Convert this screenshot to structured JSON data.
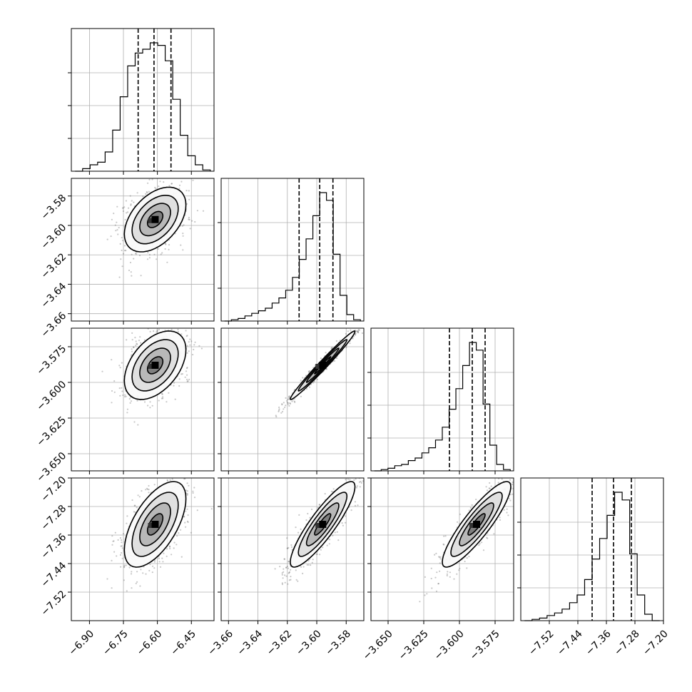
{
  "chart_data": {
    "type": "corner",
    "grid": true,
    "parameters": [
      {
        "range": [
          -6.98,
          -6.35
        ],
        "mean": -6.61,
        "sd": 0.068,
        "q": [
          -6.685,
          -6.615,
          -6.54
        ],
        "ticks": [
          {
            "value": -6.9,
            "label": "−6.90"
          },
          {
            "value": -6.75,
            "label": "−6.75"
          },
          {
            "value": -6.6,
            "label": "−6.60"
          },
          {
            "value": -6.45,
            "label": "−6.45"
          }
        ],
        "hist": [
          0,
          2,
          5,
          7,
          15,
          32,
          58,
          82,
          92,
          95,
          100,
          98,
          86,
          56,
          28,
          12,
          5,
          1
        ]
      },
      {
        "range": [
          -3.665,
          -3.568
        ],
        "mean": -3.596,
        "sd": 0.011,
        "q": [
          -3.612,
          -3.598,
          -3.589
        ],
        "ticks": [
          {
            "value": -3.66,
            "label": "−3.66"
          },
          {
            "value": -3.64,
            "label": "−3.64"
          },
          {
            "value": -3.62,
            "label": "−3.62"
          },
          {
            "value": -3.6,
            "label": "−3.60"
          },
          {
            "value": -3.58,
            "label": "−3.58"
          }
        ],
        "hist": [
          0,
          1,
          2,
          4,
          6,
          8,
          10,
          14,
          18,
          24,
          34,
          48,
          64,
          82,
          100,
          94,
          52,
          20,
          5,
          1
        ]
      },
      {
        "range": [
          -3.662,
          -3.562
        ],
        "mean": -3.588,
        "sd": 0.012,
        "q": [
          -3.607,
          -3.591,
          -3.582
        ],
        "ticks": [
          {
            "value": -3.65,
            "label": "−3.650"
          },
          {
            "value": -3.625,
            "label": "−3.625"
          },
          {
            "value": -3.6,
            "label": "−3.600"
          },
          {
            "value": -3.575,
            "label": "−3.575"
          }
        ],
        "hist": [
          0,
          1,
          2,
          4,
          5,
          8,
          10,
          14,
          18,
          24,
          34,
          48,
          64,
          82,
          100,
          94,
          52,
          20,
          5,
          1
        ]
      },
      {
        "range": [
          -7.6,
          -7.2
        ],
        "mean": -7.33,
        "sd": 0.06,
        "q": [
          -7.4,
          -7.34,
          -7.29
        ],
        "ticks": [
          {
            "value": -7.52,
            "label": "−7.52"
          },
          {
            "value": -7.44,
            "label": "−7.44"
          },
          {
            "value": -7.36,
            "label": "−7.36"
          },
          {
            "value": -7.28,
            "label": "−7.28"
          },
          {
            "value": -7.2,
            "label": "−7.20"
          }
        ],
        "hist": [
          0,
          1,
          2,
          4,
          6,
          9,
          14,
          20,
          32,
          48,
          64,
          82,
          100,
          94,
          52,
          20,
          5,
          0
        ]
      }
    ],
    "pairs": [
      {
        "row": 1,
        "col": 0,
        "rho": 0.45
      },
      {
        "row": 2,
        "col": 0,
        "rho": 0.45
      },
      {
        "row": 2,
        "col": 1,
        "rho": 0.985
      },
      {
        "row": 3,
        "col": 0,
        "rho": 0.6
      },
      {
        "row": 3,
        "col": 1,
        "rho": 0.88
      },
      {
        "row": 3,
        "col": 2,
        "rho": 0.88
      }
    ],
    "hist_y_ticks": [
      0.25,
      0.5,
      0.75
    ],
    "contour_levels": [
      0.5,
      1.0,
      1.5,
      2.0
    ]
  }
}
